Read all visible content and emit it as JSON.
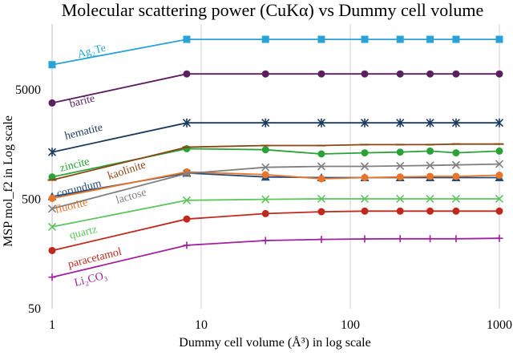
{
  "chart_data": {
    "type": "line",
    "title": "Molecular scattering power (CuKα) vs  Dummy cell volume",
    "xlabel": "Dummy cell volume (Å³) in log scale",
    "ylabel": "MSP mol_f2 in Log scale",
    "x_scale": "log",
    "y_scale": "log",
    "xlim": [
      1,
      1000
    ],
    "ylim": [
      50,
      20000
    ],
    "x_ticks": [
      1,
      10,
      100,
      1000
    ],
    "x_tick_labels": [
      "1",
      "10",
      "100",
      "1000"
    ],
    "y_ticks": [
      50,
      500,
      5000
    ],
    "y_tick_labels": [
      "50",
      "500",
      "5000"
    ],
    "grid": "vertical",
    "legend": "inline labels",
    "x": [
      1,
      8,
      27,
      64,
      125,
      216,
      343,
      512,
      1000
    ],
    "series": [
      {
        "name": "Ag₂Te",
        "color": "#29a3d6",
        "marker": "square",
        "values": [
          8500,
          14500,
          14500,
          14500,
          14500,
          14500,
          14500,
          14500,
          14500
        ]
      },
      {
        "name": "barite",
        "color": "#5b1f5f",
        "marker": "circle",
        "values": [
          3800,
          7000,
          7000,
          7000,
          7000,
          7000,
          7000,
          7000,
          7000
        ]
      },
      {
        "name": "hematite",
        "color": "#1c3a5e",
        "marker": "star",
        "values": [
          1350,
          2500,
          2500,
          2500,
          2500,
          2500,
          2500,
          2500,
          2500
        ]
      },
      {
        "name": "zincite",
        "color": "#2aa238",
        "marker": "circle",
        "values": [
          800,
          1450,
          1420,
          1300,
          1330,
          1350,
          1380,
          1330,
          1380
        ]
      },
      {
        "name": "kaolinite",
        "color": "#8b4513",
        "marker": "dash",
        "values": [
          750,
          1500,
          1550,
          1550,
          1580,
          1580,
          1580,
          1600,
          1600
        ]
      },
      {
        "name": "corundum",
        "color": "#234a78",
        "marker": "triangle",
        "values": [
          530,
          870,
          800,
          790,
          790,
          790,
          790,
          790,
          790
        ]
      },
      {
        "name": "fluorite",
        "color": "#e8752b",
        "marker": "circle",
        "values": [
          510,
          890,
          840,
          770,
          790,
          800,
          810,
          810,
          830
        ]
      },
      {
        "name": "lactose",
        "color": "#808080",
        "marker": "x",
        "values": [
          410,
          860,
          980,
          1000,
          1000,
          1010,
          1020,
          1030,
          1050
        ]
      },
      {
        "name": "quartz",
        "color": "#5ec45e",
        "marker": "x",
        "values": [
          280,
          490,
          500,
          505,
          505,
          505,
          505,
          505,
          505
        ]
      },
      {
        "name": "paracetamol",
        "color": "#c0281e",
        "marker": "circle",
        "values": [
          170,
          330,
          370,
          385,
          390,
          390,
          390,
          390,
          390
        ]
      },
      {
        "name": "Li₂CO₃",
        "color": "#a020a0",
        "marker": "plus",
        "values": [
          97,
          190,
          210,
          215,
          217,
          218,
          218,
          218,
          220
        ]
      }
    ]
  }
}
